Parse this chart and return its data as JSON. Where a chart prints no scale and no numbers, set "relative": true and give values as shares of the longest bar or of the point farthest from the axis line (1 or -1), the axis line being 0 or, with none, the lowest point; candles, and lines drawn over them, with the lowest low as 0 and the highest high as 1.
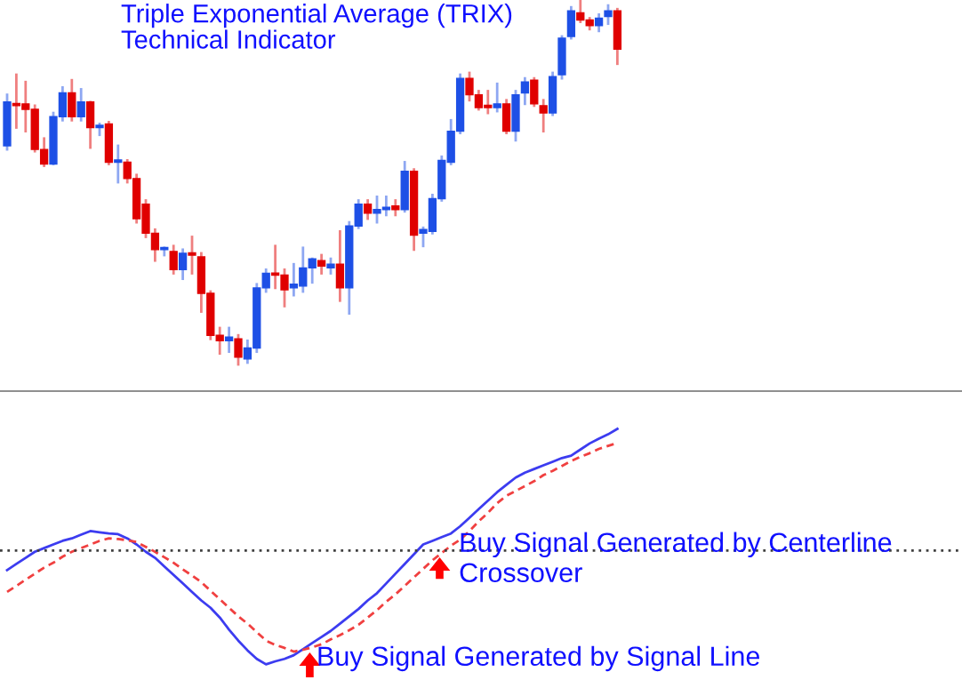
{
  "chart_data": [
    {
      "type": "candlestick",
      "title": "Triple Exponential Average (TRIX)\nTechnical Indicator",
      "relative": true,
      "categories": [
        null,
        null,
        null,
        null,
        null,
        null,
        null,
        null,
        null,
        null,
        null,
        null,
        null,
        null,
        null,
        null,
        null,
        null,
        null,
        null,
        null,
        null,
        null,
        null,
        null,
        null,
        null,
        null,
        null,
        null,
        null,
        null,
        null,
        null,
        null,
        null,
        null,
        null,
        null,
        null,
        null,
        null,
        null,
        null,
        null,
        null,
        null,
        null,
        null,
        null,
        null,
        null,
        null,
        null,
        null,
        null,
        null,
        null,
        null,
        null,
        null,
        null,
        null,
        null,
        null,
        null,
        null
      ],
      "ohlc": [
        [
          0.6,
          0.74,
          0.59,
          0.72
        ],
        [
          0.715,
          0.795,
          0.65,
          0.71
        ],
        [
          0.715,
          0.775,
          0.64,
          0.7
        ],
        [
          0.7,
          0.71,
          0.585,
          0.59
        ],
        [
          0.59,
          0.62,
          0.545,
          0.55
        ],
        [
          0.55,
          0.69,
          0.55,
          0.68
        ],
        [
          0.68,
          0.76,
          0.67,
          0.745
        ],
        [
          0.745,
          0.78,
          0.67,
          0.68
        ],
        [
          0.68,
          0.755,
          0.67,
          0.72
        ],
        [
          0.72,
          0.72,
          0.595,
          0.65
        ],
        [
          0.65,
          0.66,
          0.63,
          0.655
        ],
        [
          0.66,
          0.665,
          0.55,
          0.555
        ],
        [
          0.555,
          0.6,
          0.5,
          0.56
        ],
        [
          0.555,
          0.56,
          0.5,
          0.51
        ],
        [
          0.51,
          0.52,
          0.39,
          0.4
        ],
        [
          0.44,
          0.45,
          0.35,
          0.36
        ],
        [
          0.36,
          0.37,
          0.285,
          0.315
        ],
        [
          0.315,
          0.32,
          0.3,
          0.315
        ],
        [
          0.31,
          0.325,
          0.25,
          0.26
        ],
        [
          0.26,
          0.315,
          0.235,
          0.305
        ],
        [
          0.305,
          0.35,
          0.25,
          0.3
        ],
        [
          0.295,
          0.305,
          0.145,
          0.195
        ],
        [
          0.195,
          0.2,
          0.07,
          0.08
        ],
        [
          0.08,
          0.1,
          0.03,
          0.065
        ],
        [
          0.065,
          0.1,
          0.035,
          0.075
        ],
        [
          0.07,
          0.08,
          0,
          0.02
        ],
        [
          0.015,
          0.065,
          0.005,
          0.045
        ],
        [
          0.045,
          0.22,
          0.035,
          0.21
        ],
        [
          0.21,
          0.26,
          0.2,
          0.25
        ],
        [
          0.25,
          0.325,
          0.21,
          0.245
        ],
        [
          0.245,
          0.26,
          0.16,
          0.205
        ],
        [
          0.21,
          0.275,
          0.19,
          0.22
        ],
        [
          0.215,
          0.32,
          0.2,
          0.265
        ],
        [
          0.265,
          0.29,
          0.225,
          0.29
        ],
        [
          0.285,
          0.3,
          0.25,
          0.27
        ],
        [
          0.265,
          0.29,
          0.25,
          0.275
        ],
        [
          0.275,
          0.365,
          0.175,
          0.21
        ],
        [
          0.21,
          0.39,
          0.14,
          0.38
        ],
        [
          0.38,
          0.45,
          0.375,
          0.44
        ],
        [
          0.44,
          0.45,
          0.4,
          0.415
        ],
        [
          0.415,
          0.46,
          0.39,
          0.425
        ],
        [
          0.425,
          0.46,
          0.41,
          0.43
        ],
        [
          0.435,
          0.45,
          0.41,
          0.425
        ],
        [
          0.425,
          0.555,
          0.42,
          0.53
        ],
        [
          0.53,
          0.535,
          0.315,
          0.355
        ],
        [
          0.36,
          0.375,
          0.325,
          0.37
        ],
        [
          0.365,
          0.465,
          0.36,
          0.455
        ],
        [
          0.455,
          0.57,
          0.45,
          0.56
        ],
        [
          0.555,
          0.67,
          0.55,
          0.64
        ],
        [
          0.64,
          0.795,
          0.635,
          0.785
        ],
        [
          0.785,
          0.8,
          0.725,
          0.74
        ],
        [
          0.74,
          0.75,
          0.7,
          0.705
        ],
        [
          0.71,
          0.75,
          0.69,
          0.705
        ],
        [
          0.705,
          0.77,
          0.695,
          0.715
        ],
        [
          0.715,
          0.725,
          0.635,
          0.64
        ],
        [
          0.64,
          0.75,
          0.615,
          0.74
        ],
        [
          0.745,
          0.785,
          0.715,
          0.775
        ],
        [
          0.78,
          0.785,
          0.71,
          0.715
        ],
        [
          0.71,
          0.725,
          0.64,
          0.69
        ],
        [
          0.69,
          0.8,
          0.685,
          0.79
        ],
        [
          0.795,
          0.9,
          0.785,
          0.895
        ],
        [
          0.9,
          0.98,
          0.895,
          0.97
        ],
        [
          0.965,
          1,
          0.94,
          0.945
        ],
        [
          0.945,
          0.95,
          0.92,
          0.93
        ],
        [
          0.93,
          0.96,
          0.915,
          0.95
        ],
        [
          0.955,
          0.985,
          0.935,
          0.97
        ],
        [
          0.97,
          0.975,
          0.825,
          0.865
        ]
      ],
      "colors": [
        "#1e50e6",
        "#e00000",
        "#e00000",
        "#e00000",
        "#e00000",
        "#1e50e6",
        "#1e50e6",
        "#e00000",
        "#1e50e6",
        "#e00000",
        "#1e50e6",
        "#e00000",
        "#1e50e6",
        "#e00000",
        "#e00000",
        "#e00000",
        "#e00000",
        "#1e50e6",
        "#e00000",
        "#1e50e6",
        "#e00000",
        "#e00000",
        "#e00000",
        "#e00000",
        "#1e50e6",
        "#e00000",
        "#1e50e6",
        "#1e50e6",
        "#1e50e6",
        "#e00000",
        "#e00000",
        "#1e50e6",
        "#1e50e6",
        "#1e50e6",
        "#e00000",
        "#1e50e6",
        "#e00000",
        "#1e50e6",
        "#1e50e6",
        "#e00000",
        "#1e50e6",
        "#1e50e6",
        "#e00000",
        "#1e50e6",
        "#e00000",
        "#1e50e6",
        "#1e50e6",
        "#1e50e6",
        "#1e50e6",
        "#1e50e6",
        "#e00000",
        "#e00000",
        "#e00000",
        "#1e50e6",
        "#e00000",
        "#1e50e6",
        "#1e50e6",
        "#e00000",
        "#e00000",
        "#1e50e6",
        "#1e50e6",
        "#1e50e6",
        "#e00000",
        "#e00000",
        "#1e50e6",
        "#1e50e6",
        "#e00000"
      ]
    },
    {
      "type": "line",
      "relative": true,
      "categories": [
        null,
        null,
        null,
        null,
        null,
        null,
        null,
        null,
        null,
        null,
        null,
        null,
        null,
        null,
        null,
        null,
        null,
        null,
        null,
        null,
        null,
        null,
        null,
        null,
        null,
        null,
        null,
        null,
        null,
        null,
        null,
        null,
        null,
        null,
        null,
        null,
        null,
        null,
        null,
        null,
        null,
        null,
        null,
        null,
        null,
        null,
        null,
        null,
        null,
        null,
        null,
        null,
        null,
        null,
        null,
        null,
        null,
        null,
        null,
        null,
        null,
        null,
        null,
        null,
        null,
        null,
        null
      ],
      "series": [
        {
          "color": "#3c3cf0",
          "line_style": "solid",
          "values": [
            -0.16,
            -0.11,
            -0.06,
            -0.01,
            0.02,
            0.05,
            0.08,
            0.1,
            0.13,
            0.16,
            0.15,
            0.14,
            0.135,
            0.1,
            0.05,
            -0.01,
            -0.06,
            -0.13,
            -0.2,
            -0.27,
            -0.34,
            -0.41,
            -0.47,
            -0.55,
            -0.65,
            -0.74,
            -0.82,
            -0.89,
            -0.935,
            -0.91,
            -0.89,
            -0.86,
            -0.81,
            -0.76,
            -0.71,
            -0.66,
            -0.6,
            -0.54,
            -0.48,
            -0.41,
            -0.35,
            -0.27,
            -0.19,
            -0.11,
            -0.03,
            0.05,
            0.08,
            0.11,
            0.14,
            0.2,
            0.27,
            0.34,
            0.41,
            0.48,
            0.54,
            0.6,
            0.64,
            0.67,
            0.7,
            0.73,
            0.76,
            0.78,
            0.83,
            0.88,
            0.92,
            0.955,
            1
          ]
        },
        {
          "color": "#f04040",
          "line_style": "dashed",
          "values": [
            -0.34,
            -0.29,
            -0.24,
            -0.19,
            -0.14,
            -0.1,
            -0.05,
            -0.01,
            0.02,
            0.05,
            0.08,
            0.1,
            0.095,
            0.085,
            0.07,
            0.03,
            -0.01,
            -0.055,
            -0.1,
            -0.155,
            -0.205,
            -0.26,
            -0.33,
            -0.4,
            -0.47,
            -0.54,
            -0.6,
            -0.67,
            -0.74,
            -0.775,
            -0.8,
            -0.83,
            -0.815,
            -0.795,
            -0.77,
            -0.73,
            -0.695,
            -0.655,
            -0.61,
            -0.55,
            -0.49,
            -0.42,
            -0.36,
            -0.29,
            -0.22,
            -0.15,
            -0.08,
            -0.02,
            0.04,
            0.09,
            0.16,
            0.24,
            0.31,
            0.39,
            0.45,
            0.49,
            0.53,
            0.57,
            0.62,
            0.655,
            0.695,
            0.735,
            0.77,
            0.8,
            0.835,
            0.86,
            0.885
          ]
        }
      ],
      "ref_lines": [
        {
          "axis": "y",
          "value": 0,
          "color": "#404040",
          "line_style": "dotted"
        }
      ],
      "annotations": [
        "Buy Signal Generated by Signal Line",
        "Buy Signal Generated by Centerline\nCrossover"
      ]
    }
  ]
}
